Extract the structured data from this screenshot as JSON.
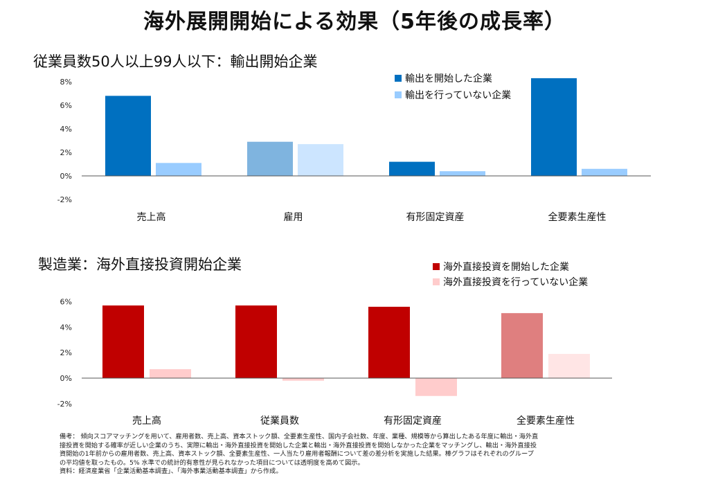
{
  "title": "海外展開開始による効果（5年後の成長率）",
  "chart_data": [
    {
      "type": "bar",
      "subtitle": "従業員数50人以上99人以下：輸出開始企業",
      "categories": [
        "売上高",
        "雇用",
        "有形固定資産",
        "全要素生産性"
      ],
      "series": [
        {
          "name": "輸出を開始した企業",
          "values": [
            6.8,
            2.9,
            1.2,
            8.3
          ]
        },
        {
          "name": "輸出を行っていない企業",
          "values": [
            1.1,
            2.7,
            0.4,
            0.6
          ]
        }
      ],
      "ylim": [
        -2,
        8
      ],
      "yticks": [
        -2,
        0,
        2,
        4,
        6,
        8
      ],
      "ytick_labels": [
        "-2%",
        "0%",
        "2%",
        "4%",
        "6%",
        "8%"
      ],
      "legend_position": "top-right",
      "colors": {
        "series1": "#0070C0",
        "series2": "#99CCFF",
        "series1_faded": "#7FB4DF",
        "series2_faded": "#CCE5FF"
      },
      "faded_category": "雇用"
    },
    {
      "type": "bar",
      "subtitle": "製造業：海外直接投資開始企業",
      "categories": [
        "売上高",
        "従業員数",
        "有形固定資産",
        "全要素生産性"
      ],
      "series": [
        {
          "name": "海外直接投資を開始した企業",
          "values": [
            5.7,
            5.7,
            5.6,
            5.1
          ]
        },
        {
          "name": "海外直接投資を行っていない企業",
          "values": [
            0.7,
            -0.2,
            -1.4,
            1.9
          ]
        }
      ],
      "ylim": [
        -2,
        6
      ],
      "yticks": [
        -2,
        0,
        2,
        4,
        6
      ],
      "ytick_labels": [
        "-2%",
        "0%",
        "2%",
        "4%",
        "6%"
      ],
      "legend_position": "top-right",
      "colors": {
        "series1": "#C00000",
        "series2": "#FFCCCC",
        "series1_faded": "#DF7F7F",
        "series2_faded": "#FFE5E5"
      },
      "faded_category": "全要素生産性"
    }
  ],
  "notes": [
    "備考： 傾向スコアマッチングを用いて、雇用者数、売上高、資本ストック額、全要素生産性、国内子会社数、年度、業種、規模等から算出したある年度に輸出・海外直",
    "接投資を開始する確率が近しい企業のうち、実際に輸出・海外直接投資を開始した企業と輸出・海外直接投資を開始しなかった企業をマッチングし、輸出・海外直接投",
    "資開始の1年前からの雇用者数、売上高、資本ストック額、全要素生産性、一人当たり雇用者報酬について差の差分析を実施した結果。棒グラフはそれぞれのグループ",
    "の平均値を取ったもの。5% 水準での統計的有意性が見られなかった項目については透明度を高めて図示。",
    "資料：経済産業省「企業活動基本調査」、「海外事業活動基本調査」から作成。"
  ]
}
